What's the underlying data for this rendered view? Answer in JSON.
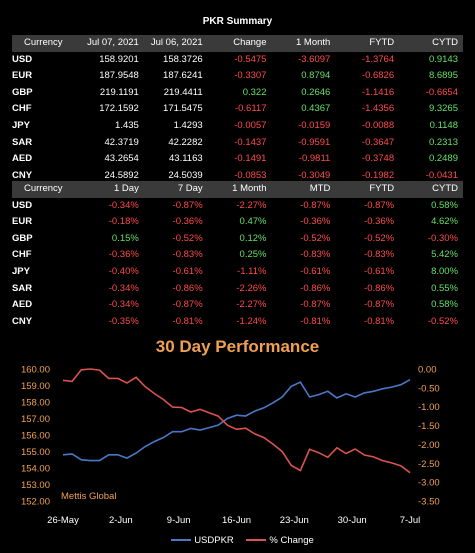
{
  "summary": {
    "title": "PKR Summary",
    "headers1": [
      "Currency",
      "Jul 07, 2021",
      "Jul 06, 2021",
      "Change",
      "1 Month",
      "FYTD",
      "CYTD"
    ],
    "rows1": [
      {
        "cur": "USD",
        "cells": [
          "158.9201",
          "158.3726",
          "-0.5475",
          "-3.6097",
          "-1.3764",
          "0.9143"
        ]
      },
      {
        "cur": "EUR",
        "cells": [
          "187.9548",
          "187.6241",
          "-0.3307",
          "0.8794",
          "-0.6826",
          "8.6895"
        ]
      },
      {
        "cur": "GBP",
        "cells": [
          "219.1191",
          "219.4411",
          "0.322",
          "0.2646",
          "-1.1416",
          "-0.6654"
        ]
      },
      {
        "cur": "CHF",
        "cells": [
          "172.1592",
          "171.5475",
          "-0.6117",
          "0.4367",
          "-1.4356",
          "9.3265"
        ]
      },
      {
        "cur": "JPY",
        "cells": [
          "1.435",
          "1.4293",
          "-0.0057",
          "-0.0159",
          "-0.0088",
          "0.1148"
        ]
      },
      {
        "cur": "SAR",
        "cells": [
          "42.3719",
          "42.2282",
          "-0.1437",
          "-0.9591",
          "-0.3647",
          "0.2313"
        ]
      },
      {
        "cur": "AED",
        "cells": [
          "43.2654",
          "43.1163",
          "-0.1491",
          "-0.9811",
          "-0.3748",
          "0.2489"
        ]
      },
      {
        "cur": "CNY",
        "cells": [
          "24.5892",
          "24.5039",
          "-0.0853",
          "-0.3049",
          "-0.1982",
          "-0.0431"
        ]
      }
    ],
    "headers2": [
      "Currency",
      "1 Day",
      "7 Day",
      "1 Month",
      "MTD",
      "FYTD",
      "CYTD"
    ],
    "rows2": [
      {
        "cur": "USD",
        "cells": [
          "-0.34%",
          "-0.87%",
          "-2.27%",
          "-0.87%",
          "-0.87%",
          "0.58%"
        ]
      },
      {
        "cur": "EUR",
        "cells": [
          "-0.18%",
          "-0.36%",
          "0.47%",
          "-0.36%",
          "-0.36%",
          "4.62%"
        ]
      },
      {
        "cur": "GBP",
        "cells": [
          "0.15%",
          "-0.52%",
          "0.12%",
          "-0.52%",
          "-0.52%",
          "-0.30%"
        ]
      },
      {
        "cur": "CHF",
        "cells": [
          "-0.36%",
          "-0.83%",
          "0.25%",
          "-0.83%",
          "-0.83%",
          "5.42%"
        ]
      },
      {
        "cur": "JPY",
        "cells": [
          "-0.40%",
          "-0.61%",
          "-1.11%",
          "-0.61%",
          "-0.61%",
          "8.00%"
        ]
      },
      {
        "cur": "SAR",
        "cells": [
          "-0.34%",
          "-0.86%",
          "-2.26%",
          "-0.86%",
          "-0.86%",
          "0.55%"
        ]
      },
      {
        "cur": "AED",
        "cells": [
          "-0.34%",
          "-0.87%",
          "-2.27%",
          "-0.87%",
          "-0.87%",
          "0.58%"
        ]
      },
      {
        "cur": "CNY",
        "cells": [
          "-0.35%",
          "-0.81%",
          "-1.24%",
          "-0.81%",
          "-0.81%",
          "-0.52%"
        ]
      }
    ]
  },
  "colors": {
    "negative": "#ff4a4a",
    "positive": "#66e066",
    "header_bg": "#3a3a3a",
    "usd_line": "#4a78c8",
    "change_line": "#d9534f",
    "accent": "#f0a050"
  },
  "chart_data": {
    "type": "line",
    "title": "30 Day Performance",
    "watermark": "Mettis Global",
    "x_labels": [
      "26-May",
      "2-Jun",
      "9-Jun",
      "16-Jun",
      "23-Jun",
      "30-Jun",
      "7-Jul"
    ],
    "y_left": {
      "min": 152.0,
      "max": 160.0,
      "ticks": [
        "152.00",
        "153.00",
        "154.00",
        "155.00",
        "156.00",
        "157.00",
        "158.00",
        "159.00",
        "160.00"
      ]
    },
    "y_right": {
      "min": -3.5,
      "max": 0.0,
      "ticks": [
        "0.00",
        "-0.50",
        "-1.00",
        "-1.50",
        "-2.00",
        "-2.50",
        "-3.00",
        "-3.50"
      ]
    },
    "series": [
      {
        "name": "USDPKR",
        "axis": "left",
        "color": "#4a78c8",
        "values": [
          154.8,
          154.85,
          154.5,
          154.45,
          154.45,
          154.8,
          154.8,
          154.6,
          154.9,
          155.3,
          155.6,
          155.85,
          156.2,
          156.2,
          156.4,
          156.3,
          156.45,
          156.6,
          157.0,
          157.2,
          157.15,
          157.45,
          157.65,
          157.95,
          158.3,
          158.95,
          159.2,
          158.3,
          158.45,
          158.65,
          158.25,
          158.5,
          158.3,
          158.55,
          158.65,
          158.8,
          158.9,
          159.05,
          159.35
        ]
      },
      {
        "name": "% Change",
        "axis": "right",
        "color": "#d9534f",
        "values": [
          -0.3,
          -0.33,
          -0.02,
          -0.0,
          -0.03,
          -0.25,
          -0.25,
          -0.37,
          -0.22,
          -0.47,
          -0.65,
          -0.81,
          -1.01,
          -1.02,
          -1.14,
          -1.07,
          -1.16,
          -1.25,
          -1.49,
          -1.6,
          -1.57,
          -1.72,
          -1.82,
          -1.99,
          -2.19,
          -2.56,
          -2.69,
          -2.13,
          -2.22,
          -2.34,
          -2.09,
          -2.24,
          -2.12,
          -2.28,
          -2.33,
          -2.43,
          -2.49,
          -2.57,
          -2.75
        ]
      }
    ],
    "legend": [
      "USDPKR",
      "% Change"
    ],
    "legend_position": "bottom",
    "grid": false
  }
}
